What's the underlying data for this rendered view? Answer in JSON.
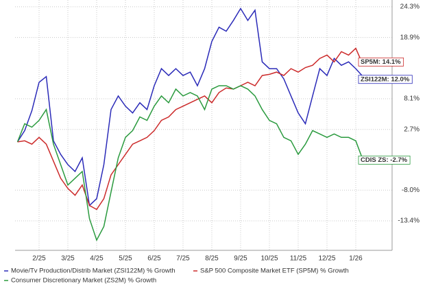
{
  "chart_data": {
    "type": "line",
    "categories": [
      null,
      null,
      null,
      "2/25",
      null,
      null,
      null,
      "3/25",
      null,
      null,
      null,
      "4/25",
      null,
      null,
      null,
      "5/25",
      null,
      null,
      null,
      "6/25",
      null,
      null,
      null,
      "7/25",
      null,
      null,
      null,
      "8/25",
      null,
      null,
      null,
      "9/25",
      null,
      null,
      null,
      "10/25",
      null,
      null,
      null,
      "11/25",
      null,
      null,
      null,
      "12/25",
      null,
      null,
      null,
      "1/26",
      null
    ],
    "series": [
      {
        "name": "Movie/Tv Production/Distrib Market (ZSI122M) % Growth",
        "color": "#2a2ab8",
        "end_label": "ZSI122M: 12.0%",
        "values": [
          0.5,
          2.5,
          6,
          11,
          12,
          0.7,
          -1.7,
          -3.5,
          -4.7,
          -2.3,
          -10.7,
          -9.5,
          -3.5,
          6.2,
          8.6,
          6.8,
          5.6,
          7.4,
          6.2,
          10.4,
          13.4,
          12.2,
          13.4,
          12.2,
          12.8,
          10.4,
          13.4,
          18.2,
          20.7,
          20,
          21.9,
          24,
          21.9,
          23.7,
          14.6,
          13.4,
          13.4,
          11.6,
          8.6,
          5.6,
          3.7,
          8.6,
          13.4,
          12.2,
          15.2,
          14,
          14.6,
          13.4,
          12.0
        ]
      },
      {
        "name": "S&P 500 Composite Market ETF (SP5M) % Growth",
        "color": "#cc2a2a",
        "end_label": "SP5M: 14.1%",
        "values": [
          0.5,
          0.7,
          0.1,
          1.3,
          0.1,
          -2.9,
          -5.9,
          -7.7,
          -8.9,
          -7.1,
          -10.7,
          -11.4,
          -9.5,
          -5.3,
          -3.5,
          -1.7,
          0.1,
          0.7,
          1.3,
          2.5,
          4.3,
          4.9,
          6.2,
          6.8,
          7.4,
          8,
          8.6,
          7.4,
          9.2,
          10,
          9.8,
          10.4,
          11,
          10.4,
          12.2,
          12.4,
          12.8,
          12.2,
          13.4,
          12.8,
          13.6,
          14,
          15.2,
          15.8,
          14.6,
          16.4,
          15.8,
          17,
          14.1
        ]
      },
      {
        "name": "Consumer Discretionary Market (ZS2M) % Growth",
        "color": "#2a9a3e",
        "end_label": "CDIS ZS: -2.7%",
        "values": [
          0.5,
          3.7,
          3.1,
          4.3,
          6.2,
          0.1,
          -3.5,
          -7.1,
          -5.9,
          -4.7,
          -13.0,
          -16.8,
          -14.4,
          -8.3,
          -2.3,
          1.3,
          2.5,
          4.9,
          4.3,
          6.8,
          8.6,
          7.4,
          9.8,
          8.6,
          9.2,
          8.6,
          6.2,
          9.8,
          10.4,
          10.4,
          9.8,
          10.4,
          9.8,
          8.6,
          6.2,
          4.3,
          3.7,
          1.3,
          0.7,
          -1.7,
          0.1,
          2.5,
          1.9,
          1.3,
          1.9,
          1.3,
          1.3,
          0.7,
          -2.7
        ]
      }
    ],
    "ylim": [
      -18.6,
      25.5
    ],
    "yticks": [
      {
        "value": 24.3,
        "label": "24.3%"
      },
      {
        "value": 18.9,
        "label": "18.9%"
      },
      {
        "value": 8.1,
        "label": "8.1%"
      },
      {
        "value": 2.7,
        "label": "2.7%"
      },
      {
        "value": -8.0,
        "label": "-8.0%"
      },
      {
        "value": -13.4,
        "label": "-13.4%"
      }
    ],
    "grid": true
  }
}
